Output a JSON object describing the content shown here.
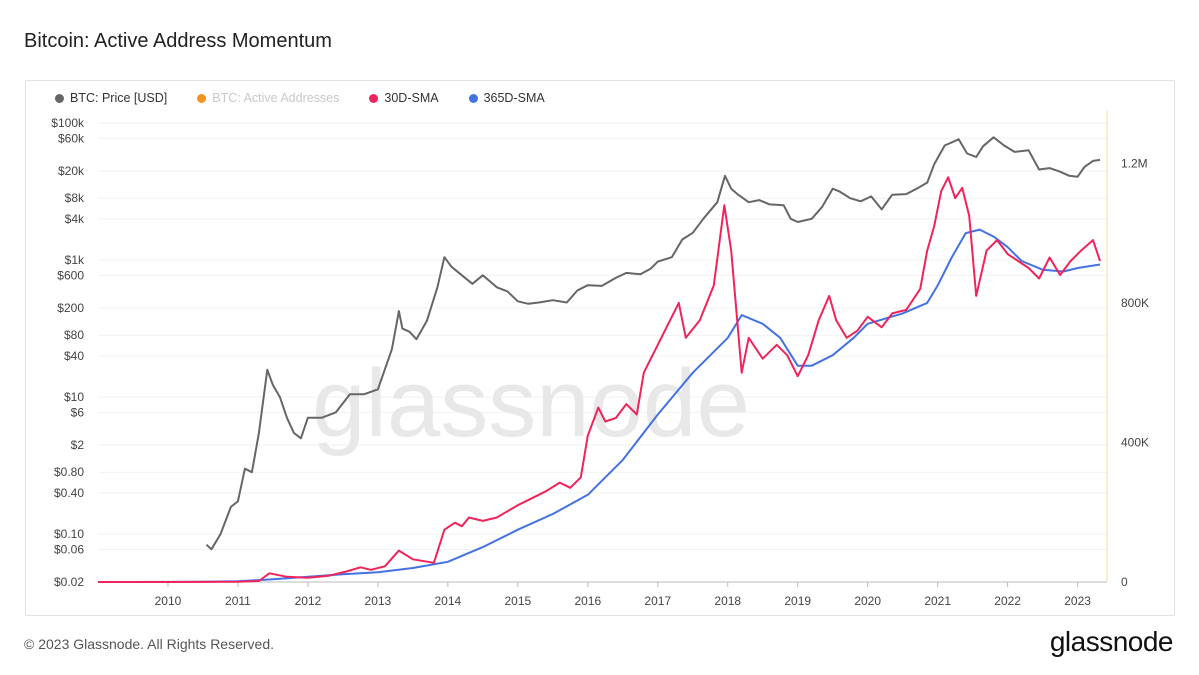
{
  "page": {
    "title": "Bitcoin: Active Address Momentum",
    "footer": "© 2023 Glassnode. All Rights Reserved.",
    "brand": "glassnode",
    "watermark": "glassnode"
  },
  "chart_data": {
    "type": "line",
    "title": "Bitcoin: Active Address Momentum",
    "legend": [
      {
        "name": "BTC: Price [USD]",
        "color": "#666666",
        "active": true
      },
      {
        "name": "BTC: Active Addresses",
        "color": "#f7931a",
        "active": false
      },
      {
        "name": "30D-SMA",
        "color": "#f0245a",
        "active": true
      },
      {
        "name": "365D-SMA",
        "color": "#4472e0",
        "active": true
      }
    ],
    "legend_position": "top-left",
    "x_axis": {
      "type": "date",
      "range": [
        "2009-01-03",
        "2023-05-01"
      ],
      "ticks": [
        "2010",
        "2011",
        "2012",
        "2013",
        "2014",
        "2015",
        "2016",
        "2017",
        "2018",
        "2019",
        "2020",
        "2021",
        "2022",
        "2023"
      ]
    },
    "y_left": {
      "type": "log",
      "unit": "USD",
      "range": [
        0.02,
        150000
      ],
      "ticks": [
        "$100k",
        "$60k",
        "$20k",
        "$8k",
        "$4k",
        "$1k",
        "$600",
        "$200",
        "$80",
        "$40",
        "$10",
        "$6",
        "$2",
        "$0.80",
        "$0.40",
        "$0.10",
        "$0.06",
        "$0.02"
      ],
      "tick_values": [
        100000,
        60000,
        20000,
        8000,
        4000,
        1000,
        600,
        200,
        80,
        40,
        10,
        6,
        2,
        0.8,
        0.4,
        0.1,
        0.06,
        0.02
      ]
    },
    "y_right": {
      "type": "linear",
      "range": [
        0,
        1350000
      ],
      "ticks": [
        "1.2M",
        "800K",
        "400K",
        "0"
      ],
      "tick_values": [
        1200000,
        800000,
        400000,
        0
      ]
    },
    "grid": true,
    "series": [
      {
        "name": "BTC: Price [USD]",
        "axis": "left",
        "color": "#666666",
        "points": [
          [
            2010.55,
            0.07
          ],
          [
            2010.62,
            0.06
          ],
          [
            2010.75,
            0.1
          ],
          [
            2010.9,
            0.25
          ],
          [
            2011.0,
            0.3
          ],
          [
            2011.1,
            0.9
          ],
          [
            2011.2,
            0.8
          ],
          [
            2011.3,
            3
          ],
          [
            2011.42,
            25
          ],
          [
            2011.5,
            15
          ],
          [
            2011.6,
            10
          ],
          [
            2011.7,
            5
          ],
          [
            2011.8,
            3
          ],
          [
            2011.9,
            2.5
          ],
          [
            2012.0,
            5
          ],
          [
            2012.2,
            5
          ],
          [
            2012.4,
            6
          ],
          [
            2012.6,
            11
          ],
          [
            2012.8,
            11
          ],
          [
            2013.0,
            13
          ],
          [
            2013.2,
            50
          ],
          [
            2013.3,
            180
          ],
          [
            2013.35,
            100
          ],
          [
            2013.45,
            90
          ],
          [
            2013.55,
            70
          ],
          [
            2013.7,
            130
          ],
          [
            2013.85,
            400
          ],
          [
            2013.95,
            1100
          ],
          [
            2014.05,
            800
          ],
          [
            2014.2,
            600
          ],
          [
            2014.35,
            450
          ],
          [
            2014.5,
            600
          ],
          [
            2014.7,
            400
          ],
          [
            2014.85,
            350
          ],
          [
            2015.0,
            250
          ],
          [
            2015.15,
            230
          ],
          [
            2015.3,
            240
          ],
          [
            2015.5,
            260
          ],
          [
            2015.7,
            240
          ],
          [
            2015.85,
            360
          ],
          [
            2016.0,
            430
          ],
          [
            2016.2,
            420
          ],
          [
            2016.4,
            550
          ],
          [
            2016.55,
            650
          ],
          [
            2016.75,
            620
          ],
          [
            2016.9,
            750
          ],
          [
            2017.0,
            950
          ],
          [
            2017.2,
            1100
          ],
          [
            2017.35,
            2000
          ],
          [
            2017.5,
            2500
          ],
          [
            2017.65,
            4000
          ],
          [
            2017.85,
            7000
          ],
          [
            2017.96,
            17000
          ],
          [
            2018.05,
            11000
          ],
          [
            2018.15,
            9000
          ],
          [
            2018.3,
            7000
          ],
          [
            2018.45,
            7500
          ],
          [
            2018.6,
            6500
          ],
          [
            2018.8,
            6300
          ],
          [
            2018.9,
            4000
          ],
          [
            2019.0,
            3600
          ],
          [
            2019.2,
            4000
          ],
          [
            2019.35,
            6000
          ],
          [
            2019.5,
            11000
          ],
          [
            2019.6,
            10000
          ],
          [
            2019.75,
            8000
          ],
          [
            2019.9,
            7200
          ],
          [
            2020.05,
            8500
          ],
          [
            2020.2,
            5500
          ],
          [
            2020.35,
            9000
          ],
          [
            2020.55,
            9200
          ],
          [
            2020.7,
            11000
          ],
          [
            2020.85,
            13500
          ],
          [
            2020.95,
            25000
          ],
          [
            2021.1,
            47000
          ],
          [
            2021.3,
            58000
          ],
          [
            2021.42,
            36000
          ],
          [
            2021.55,
            32000
          ],
          [
            2021.65,
            46000
          ],
          [
            2021.8,
            62000
          ],
          [
            2021.95,
            47000
          ],
          [
            2022.1,
            38000
          ],
          [
            2022.3,
            40000
          ],
          [
            2022.45,
            21000
          ],
          [
            2022.6,
            22000
          ],
          [
            2022.75,
            19500
          ],
          [
            2022.88,
            17000
          ],
          [
            2023.0,
            16500
          ],
          [
            2023.1,
            23000
          ],
          [
            2023.22,
            28000
          ],
          [
            2023.32,
            29000
          ]
        ]
      },
      {
        "name": "30D-SMA",
        "axis": "right",
        "color": "#f0245a",
        "points": [
          [
            2009.0,
            0
          ],
          [
            2010.0,
            0
          ],
          [
            2011.0,
            1000
          ],
          [
            2011.3,
            3000
          ],
          [
            2011.45,
            25000
          ],
          [
            2011.7,
            15000
          ],
          [
            2012.0,
            12000
          ],
          [
            2012.3,
            18000
          ],
          [
            2012.55,
            30000
          ],
          [
            2012.75,
            42000
          ],
          [
            2012.9,
            35000
          ],
          [
            2013.1,
            45000
          ],
          [
            2013.3,
            90000
          ],
          [
            2013.5,
            65000
          ],
          [
            2013.8,
            55000
          ],
          [
            2013.95,
            150000
          ],
          [
            2014.1,
            170000
          ],
          [
            2014.2,
            160000
          ],
          [
            2014.3,
            185000
          ],
          [
            2014.5,
            175000
          ],
          [
            2014.7,
            185000
          ],
          [
            2015.0,
            220000
          ],
          [
            2015.2,
            240000
          ],
          [
            2015.4,
            260000
          ],
          [
            2015.6,
            285000
          ],
          [
            2015.75,
            270000
          ],
          [
            2015.9,
            300000
          ],
          [
            2016.0,
            420000
          ],
          [
            2016.15,
            500000
          ],
          [
            2016.25,
            460000
          ],
          [
            2016.4,
            470000
          ],
          [
            2016.55,
            510000
          ],
          [
            2016.7,
            480000
          ],
          [
            2016.8,
            600000
          ],
          [
            2016.9,
            640000
          ],
          [
            2017.0,
            680000
          ],
          [
            2017.15,
            740000
          ],
          [
            2017.3,
            800000
          ],
          [
            2017.4,
            700000
          ],
          [
            2017.6,
            750000
          ],
          [
            2017.8,
            850000
          ],
          [
            2017.95,
            1080000
          ],
          [
            2018.05,
            950000
          ],
          [
            2018.2,
            600000
          ],
          [
            2018.3,
            700000
          ],
          [
            2018.5,
            640000
          ],
          [
            2018.7,
            680000
          ],
          [
            2018.85,
            650000
          ],
          [
            2019.0,
            590000
          ],
          [
            2019.15,
            650000
          ],
          [
            2019.3,
            750000
          ],
          [
            2019.45,
            820000
          ],
          [
            2019.55,
            750000
          ],
          [
            2019.7,
            700000
          ],
          [
            2019.85,
            720000
          ],
          [
            2020.0,
            760000
          ],
          [
            2020.2,
            730000
          ],
          [
            2020.35,
            770000
          ],
          [
            2020.55,
            780000
          ],
          [
            2020.75,
            840000
          ],
          [
            2020.85,
            950000
          ],
          [
            2020.95,
            1020000
          ],
          [
            2021.05,
            1120000
          ],
          [
            2021.15,
            1160000
          ],
          [
            2021.25,
            1100000
          ],
          [
            2021.35,
            1130000
          ],
          [
            2021.45,
            1050000
          ],
          [
            2021.55,
            820000
          ],
          [
            2021.7,
            950000
          ],
          [
            2021.85,
            980000
          ],
          [
            2022.0,
            940000
          ],
          [
            2022.15,
            920000
          ],
          [
            2022.3,
            900000
          ],
          [
            2022.45,
            870000
          ],
          [
            2022.6,
            930000
          ],
          [
            2022.75,
            880000
          ],
          [
            2022.9,
            920000
          ],
          [
            2023.05,
            950000
          ],
          [
            2023.22,
            980000
          ],
          [
            2023.32,
            920000
          ]
        ]
      },
      {
        "name": "365D-SMA",
        "axis": "right",
        "color": "#4472e0",
        "points": [
          [
            2009.0,
            0
          ],
          [
            2010.5,
            500
          ],
          [
            2011.0,
            2000
          ],
          [
            2011.5,
            8000
          ],
          [
            2012.0,
            15000
          ],
          [
            2012.5,
            22000
          ],
          [
            2013.0,
            28000
          ],
          [
            2013.5,
            40000
          ],
          [
            2014.0,
            58000
          ],
          [
            2014.5,
            100000
          ],
          [
            2015.0,
            150000
          ],
          [
            2015.5,
            195000
          ],
          [
            2016.0,
            250000
          ],
          [
            2016.5,
            350000
          ],
          [
            2017.0,
            480000
          ],
          [
            2017.5,
            600000
          ],
          [
            2018.0,
            700000
          ],
          [
            2018.2,
            765000
          ],
          [
            2018.5,
            740000
          ],
          [
            2018.75,
            700000
          ],
          [
            2019.0,
            620000
          ],
          [
            2019.2,
            620000
          ],
          [
            2019.5,
            650000
          ],
          [
            2019.8,
            700000
          ],
          [
            2020.0,
            740000
          ],
          [
            2020.5,
            770000
          ],
          [
            2020.85,
            800000
          ],
          [
            2021.0,
            850000
          ],
          [
            2021.2,
            930000
          ],
          [
            2021.4,
            1000000
          ],
          [
            2021.6,
            1010000
          ],
          [
            2021.8,
            990000
          ],
          [
            2022.0,
            960000
          ],
          [
            2022.2,
            920000
          ],
          [
            2022.5,
            895000
          ],
          [
            2022.8,
            890000
          ],
          [
            2023.0,
            900000
          ],
          [
            2023.32,
            910000
          ]
        ]
      }
    ]
  }
}
